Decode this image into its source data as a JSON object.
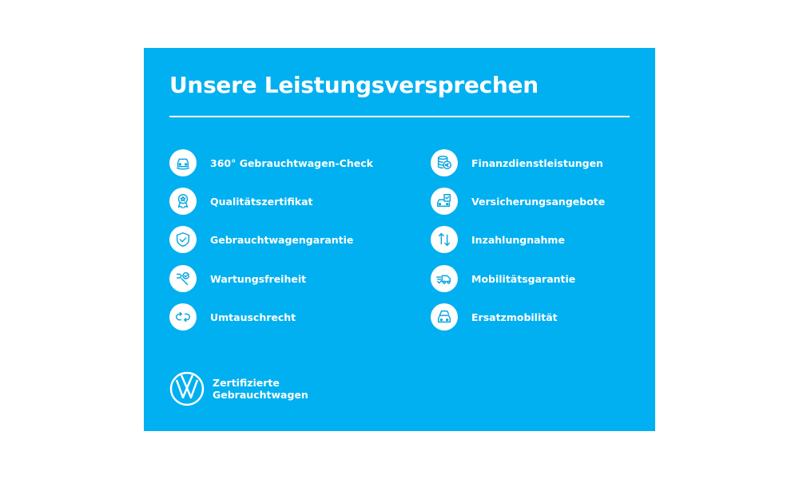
{
  "title": "Unsere Leistungsversprechen",
  "left_items": [
    {
      "label": "360° Gebrauchtwagen-Check",
      "icon": "car-check-icon"
    },
    {
      "label": "Qualitätszertifikat",
      "icon": "award-icon"
    },
    {
      "label": "Gebrauchtwagengarantie",
      "icon": "shield-check-icon"
    },
    {
      "label": "Wartungsfreiheit",
      "icon": "wrench-check-icon"
    },
    {
      "label": "Umtauschrecht",
      "icon": "exchange-icon"
    }
  ],
  "right_items": [
    {
      "label": "Finanzdienstleistungen",
      "icon": "coins-euro-icon"
    },
    {
      "label": "Versicherungsangebote",
      "icon": "car-document-icon"
    },
    {
      "label": "Inzahlungnahme",
      "icon": "arrows-up-down-icon"
    },
    {
      "label": "Mobilitätsgarantie",
      "icon": "towing-van-icon"
    },
    {
      "label": "Ersatzmobilität",
      "icon": "cars-icon"
    }
  ],
  "footer": {
    "line1": "Zertifizierte",
    "line2": "Gebrauchtwagen",
    "logo": "VW"
  },
  "colors": {
    "background": "#00b0f0",
    "text": "#ffffff"
  }
}
